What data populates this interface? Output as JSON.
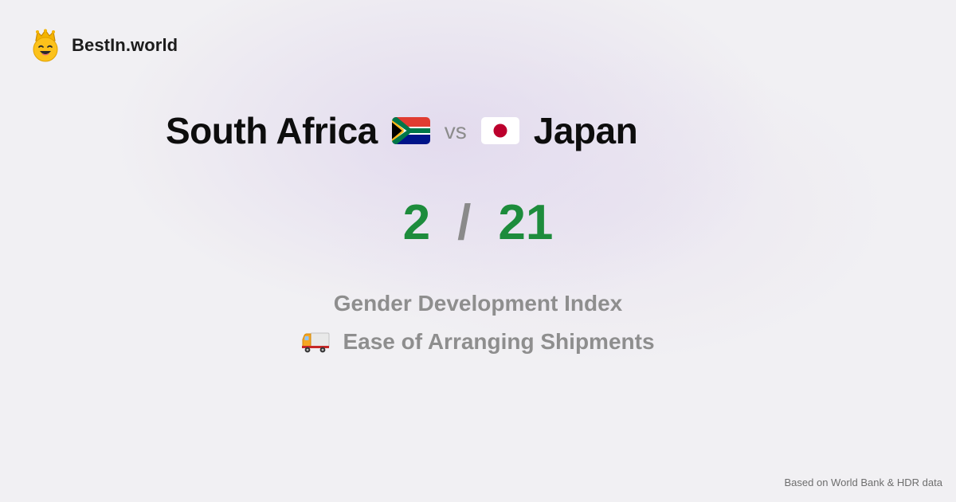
{
  "brand": {
    "name": "BestIn.world",
    "logo_icon": "crown-smiley-icon"
  },
  "comparison": {
    "left_country": "South Africa",
    "left_flag": "south-africa-flag-icon",
    "vs_label": "vs",
    "right_country": "Japan",
    "right_flag": "japan-flag-icon",
    "left_score": "2",
    "separator": "/",
    "right_score": "21"
  },
  "metrics": {
    "primary": "Gender Development Index",
    "secondary": "Ease of Arranging Shipments",
    "secondary_icon": "delivery-truck-icon"
  },
  "footer": {
    "source_note": "Based on World Bank & HDR data"
  },
  "colors": {
    "score": "#1d8c3c",
    "muted": "#8e8e8e",
    "background": "#f1f0f3"
  }
}
